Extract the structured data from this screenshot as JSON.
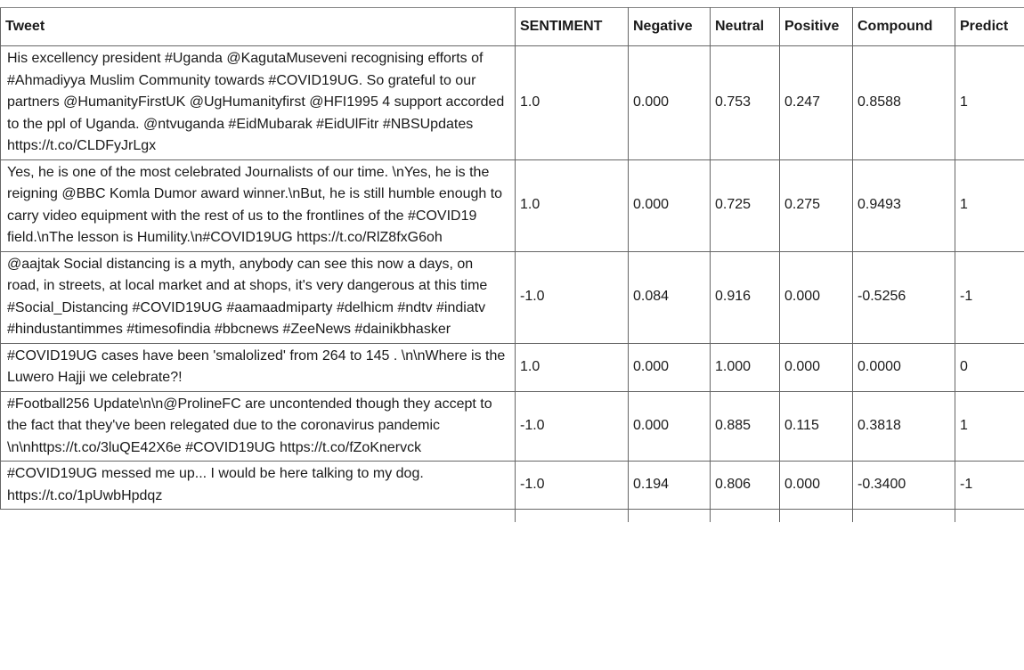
{
  "table": {
    "headers": [
      "Tweet",
      "SENTIMENT",
      "Negative",
      "Neutral",
      "Positive",
      "Compound",
      "Predict"
    ],
    "rows": [
      {
        "tweet": "His excellency president #Uganda @KagutaMuseveni recognising efforts of #Ahmadiyya Muslim Community towards #COVID19UG. So grateful to our partners @HumanityFirstUK @UgHumanityfirst @HFI1995 4 support accorded to the ppl of Uganda. @ntvuganda #EidMubarak #EidUlFitr #NBSUpdates https://t.co/CLDFyJrLgx",
        "sentiment": "1.0",
        "negative": "0.000",
        "neutral": "0.753",
        "positive": "0.247",
        "compound": "0.8588",
        "predict": "1"
      },
      {
        "tweet": "Yes, he is one of the most celebrated Journalists of our time. \\nYes, he is the reigning @BBC Komla Dumor award winner.\\nBut, he is still humble enough to carry video equipment with the rest of us to the frontlines of the #COVID19 field.\\nThe lesson is Humility.\\n#COVID19UG https://t.co/RlZ8fxG6oh",
        "sentiment": "1.0",
        "negative": "0.000",
        "neutral": "0.725",
        "positive": "0.275",
        "compound": "0.9493",
        "predict": "1"
      },
      {
        "tweet": "@aajtak Social distancing is a myth, anybody can see this now a days, on road, in streets, at local market and at shops, it's very dangerous at this time #Social_Distancing #COVID19UG #aamaadmiparty #delhicm #ndtv #indiatv #hindustantimmes #timesofindia #bbcnews #ZeeNews #dainikbhasker",
        "sentiment": "-1.0",
        "negative": "0.084",
        "neutral": "0.916",
        "positive": "0.000",
        "compound": "-0.5256",
        "predict": "-1"
      },
      {
        "tweet": "#COVID19UG cases have been 'smalolized' from 264 to 145 . \\n\\nWhere is the Luwero Hajji we celebrate?!",
        "sentiment": "1.0",
        "negative": "0.000",
        "neutral": "1.000",
        "positive": "0.000",
        "compound": "0.0000",
        "predict": "0"
      },
      {
        "tweet": "#Football256 Update\\n\\n@ProlineFC are uncontended though they accept to the fact that they've been relegated due to the coronavirus pandemic \\n\\nhttps://t.co/3luQE42X6e #COVID19UG https://t.co/fZoKnervck",
        "sentiment": "-1.0",
        "negative": "0.000",
        "neutral": "0.885",
        "positive": "0.115",
        "compound": "0.3818",
        "predict": "1"
      },
      {
        "tweet": "#COVID19UG messed me up... I would be here talking to my dog. https://t.co/1pUwbHpdqz",
        "sentiment": "-1.0",
        "negative": "0.194",
        "neutral": "0.806",
        "positive": "0.000",
        "compound": "-0.3400",
        "predict": "-1"
      }
    ]
  }
}
